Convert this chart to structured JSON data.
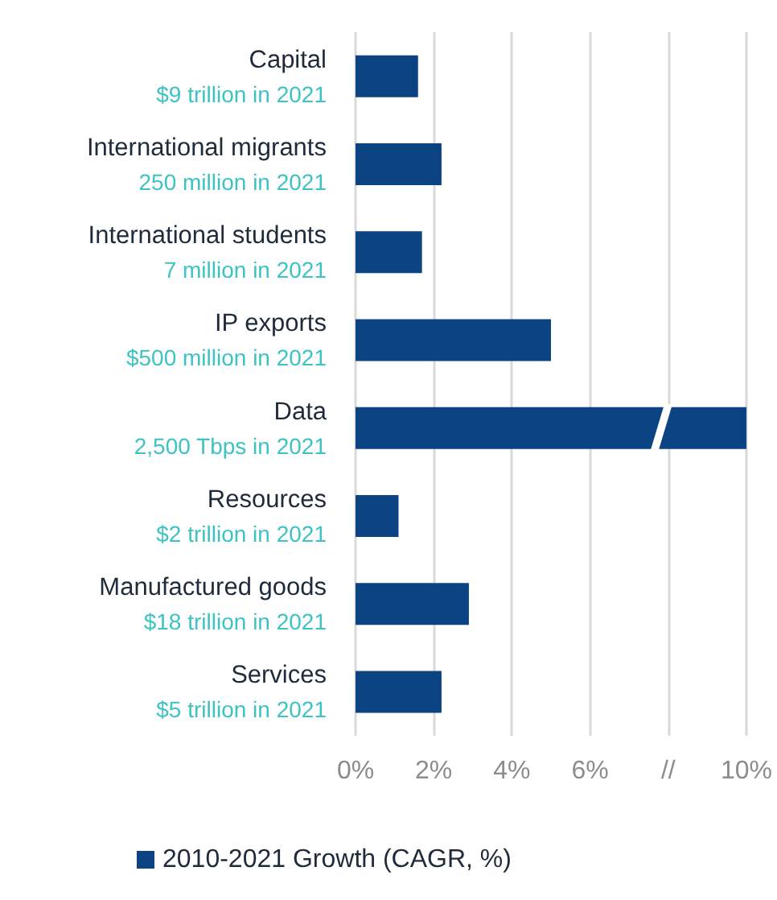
{
  "chart_data": {
    "type": "bar",
    "orientation": "horizontal",
    "categories": [
      "Capital\n$9 trillion in 2021",
      "International migrants\n250 million in 2021",
      "International students\n7 million in 2021",
      "IP exports\n$500 million in 2021",
      "Data\n2,500 Tbps in 2021",
      "Resources\n$2 trillion in 2021",
      "Manufactured goods\n$18 trillion in 2021",
      "Services\n$5 trillion in 2021"
    ],
    "series": [
      {
        "name": "2010-2021 Growth (CAGR, %)",
        "color": "#0b4383",
        "values": [
          1.6,
          2.2,
          1.7,
          5.0,
          10,
          1.1,
          2.9,
          2.2
        ]
      }
    ],
    "xlim": [
      0,
      10
    ],
    "xticks": [
      {
        "value": 0,
        "label": "0%"
      },
      {
        "value": 2,
        "label": "2%"
      },
      {
        "value": 4,
        "label": "4%"
      },
      {
        "value": 6,
        "label": "6%"
      },
      {
        "value": 8,
        "label": "//"
      },
      {
        "value": 10,
        "label": "10%"
      }
    ],
    "grid": "x",
    "legend": "bottom"
  }
}
